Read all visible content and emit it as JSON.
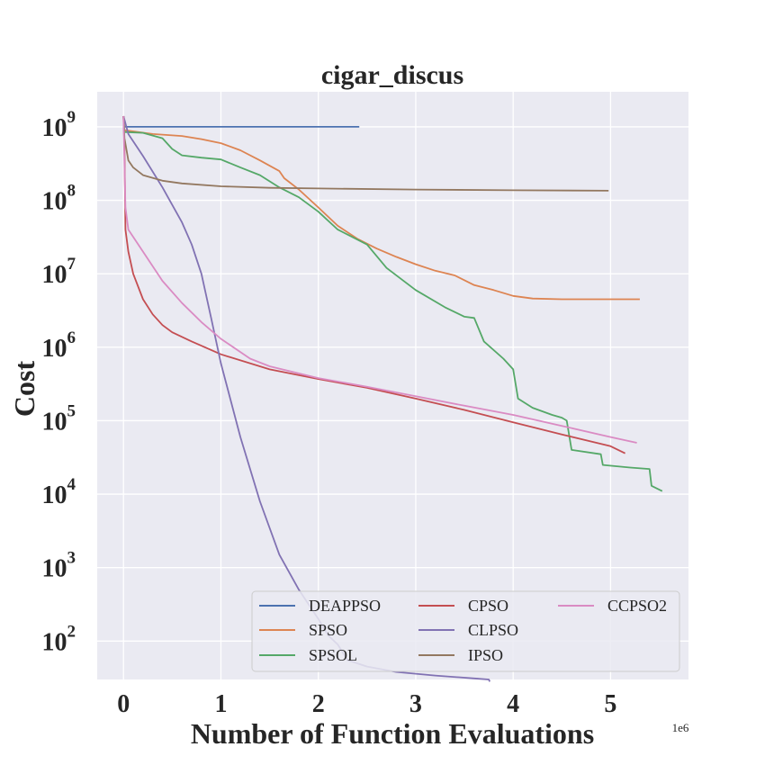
{
  "chart_data": {
    "type": "line",
    "title": "cigar_discus",
    "xlabel": "Number of Function Evaluations",
    "ylabel": "Cost",
    "x_offset_label": "1e6",
    "yscale": "log",
    "xlim": [
      -0.27,
      5.8
    ],
    "ylim": [
      30,
      3000000000
    ],
    "xticks": [
      0,
      1,
      2,
      3,
      4,
      5
    ],
    "xtick_labels": [
      "0",
      "1",
      "2",
      "3",
      "4",
      "5"
    ],
    "yticks": [
      {
        "base": "10",
        "exp": "2",
        "value": 100
      },
      {
        "base": "10",
        "exp": "3",
        "value": 1000
      },
      {
        "base": "10",
        "exp": "4",
        "value": 10000
      },
      {
        "base": "10",
        "exp": "5",
        "value": 100000
      },
      {
        "base": "10",
        "exp": "6",
        "value": 1000000
      },
      {
        "base": "10",
        "exp": "7",
        "value": 10000000
      },
      {
        "base": "10",
        "exp": "8",
        "value": 100000000
      },
      {
        "base": "10",
        "exp": "9",
        "value": 1000000000
      }
    ],
    "grid": true,
    "background": "#eaeaf2",
    "legend_position": "lower-right",
    "legend_columns": 3,
    "series": [
      {
        "name": "DEAPPSO",
        "color": "#4c72b0",
        "points": [
          [
            0,
            1400000000
          ],
          [
            0.005,
            1000000000
          ],
          [
            2.42,
            1000000000
          ]
        ]
      },
      {
        "name": "SPSO",
        "color": "#dd8452",
        "points": [
          [
            0,
            1400000000
          ],
          [
            0.01,
            900000000
          ],
          [
            0.3,
            800000000
          ],
          [
            0.6,
            750000000
          ],
          [
            0.8,
            680000000
          ],
          [
            1.0,
            600000000
          ],
          [
            1.2,
            480000000
          ],
          [
            1.4,
            350000000
          ],
          [
            1.6,
            250000000
          ],
          [
            1.65,
            200000000
          ],
          [
            1.8,
            140000000
          ],
          [
            2.0,
            80000000
          ],
          [
            2.2,
            45000000
          ],
          [
            2.4,
            30000000
          ],
          [
            2.6,
            22000000
          ],
          [
            2.8,
            17000000
          ],
          [
            3.0,
            13500000
          ],
          [
            3.2,
            11000000
          ],
          [
            3.4,
            9500000
          ],
          [
            3.6,
            7000000
          ],
          [
            3.8,
            6000000
          ],
          [
            4.0,
            5000000
          ],
          [
            4.2,
            4600000
          ],
          [
            4.5,
            4500000
          ],
          [
            5.3,
            4500000
          ]
        ]
      },
      {
        "name": "SPSOL",
        "color": "#55a868",
        "points": [
          [
            0,
            1400000000
          ],
          [
            0.01,
            850000000
          ],
          [
            0.2,
            830000000
          ],
          [
            0.4,
            700000000
          ],
          [
            0.5,
            500000000
          ],
          [
            0.6,
            410000000
          ],
          [
            0.8,
            380000000
          ],
          [
            1.0,
            360000000
          ],
          [
            1.2,
            280000000
          ],
          [
            1.4,
            220000000
          ],
          [
            1.6,
            150000000
          ],
          [
            1.8,
            110000000
          ],
          [
            2.0,
            70000000
          ],
          [
            2.2,
            40000000
          ],
          [
            2.5,
            25000000
          ],
          [
            2.7,
            12000000
          ],
          [
            3.0,
            6000000
          ],
          [
            3.3,
            3500000
          ],
          [
            3.5,
            2600000
          ],
          [
            3.6,
            2500000
          ],
          [
            3.7,
            1200000
          ],
          [
            3.9,
            700000
          ],
          [
            4.0,
            500000
          ],
          [
            4.05,
            200000
          ],
          [
            4.2,
            150000
          ],
          [
            4.4,
            120000
          ],
          [
            4.5,
            110000
          ],
          [
            4.55,
            100000
          ],
          [
            4.6,
            40000
          ],
          [
            4.9,
            35000
          ],
          [
            4.92,
            25000
          ],
          [
            5.2,
            23000
          ],
          [
            5.4,
            22000
          ],
          [
            5.42,
            13000
          ],
          [
            5.53,
            11000
          ]
        ]
      },
      {
        "name": "CPSO",
        "color": "#c44e52",
        "points": [
          [
            0,
            1400000000
          ],
          [
            0.01,
            500000000
          ],
          [
            0.02,
            40000000
          ],
          [
            0.05,
            20000000
          ],
          [
            0.1,
            10000000
          ],
          [
            0.2,
            4500000
          ],
          [
            0.3,
            2800000
          ],
          [
            0.4,
            2000000
          ],
          [
            0.5,
            1600000
          ],
          [
            0.7,
            1200000
          ],
          [
            1.0,
            800000
          ],
          [
            1.5,
            500000
          ],
          [
            2.0,
            370000
          ],
          [
            2.5,
            280000
          ],
          [
            3.0,
            200000
          ],
          [
            3.5,
            140000
          ],
          [
            4.0,
            95000
          ],
          [
            4.5,
            65000
          ],
          [
            5.0,
            45000
          ],
          [
            5.15,
            36000
          ]
        ]
      },
      {
        "name": "CLPSO",
        "color": "#8172b3",
        "points": [
          [
            0,
            1400000000
          ],
          [
            0.05,
            800000000
          ],
          [
            0.2,
            400000000
          ],
          [
            0.4,
            150000000
          ],
          [
            0.6,
            50000000
          ],
          [
            0.7,
            25000000
          ],
          [
            0.8,
            10000000
          ],
          [
            0.9,
            2500000
          ],
          [
            1.0,
            600000
          ],
          [
            1.2,
            60000
          ],
          [
            1.4,
            8000
          ],
          [
            1.6,
            1500
          ],
          [
            1.8,
            500
          ],
          [
            2.0,
            200
          ],
          [
            2.1,
            120
          ],
          [
            2.2,
            90
          ],
          [
            2.3,
            55
          ],
          [
            2.5,
            45
          ],
          [
            2.8,
            38
          ],
          [
            3.2,
            34
          ],
          [
            3.6,
            31
          ],
          [
            3.75,
            30
          ],
          [
            3.76,
            28
          ]
        ]
      },
      {
        "name": "IPSO",
        "color": "#937860",
        "points": [
          [
            0,
            1400000000
          ],
          [
            0.01,
            700000000
          ],
          [
            0.05,
            350000000
          ],
          [
            0.1,
            280000000
          ],
          [
            0.2,
            220000000
          ],
          [
            0.4,
            185000000
          ],
          [
            0.6,
            170000000
          ],
          [
            1.0,
            155000000
          ],
          [
            1.5,
            148000000
          ],
          [
            2.0,
            145000000
          ],
          [
            3.0,
            140000000
          ],
          [
            4.0,
            137000000
          ],
          [
            4.98,
            135000000
          ]
        ]
      },
      {
        "name": "CCPSO2",
        "color": "#da8bc3",
        "points": [
          [
            0,
            1400000000
          ],
          [
            0.01,
            300000000
          ],
          [
            0.02,
            80000000
          ],
          [
            0.05,
            40000000
          ],
          [
            0.2,
            20000000
          ],
          [
            0.4,
            8000000
          ],
          [
            0.6,
            4000000
          ],
          [
            0.8,
            2200000
          ],
          [
            1.0,
            1300000
          ],
          [
            1.3,
            700000
          ],
          [
            1.5,
            550000
          ],
          [
            2.0,
            380000
          ],
          [
            2.5,
            290000
          ],
          [
            3.0,
            215000
          ],
          [
            3.5,
            160000
          ],
          [
            4.0,
            120000
          ],
          [
            4.5,
            85000
          ],
          [
            5.0,
            60000
          ],
          [
            5.27,
            50000
          ]
        ]
      }
    ]
  }
}
